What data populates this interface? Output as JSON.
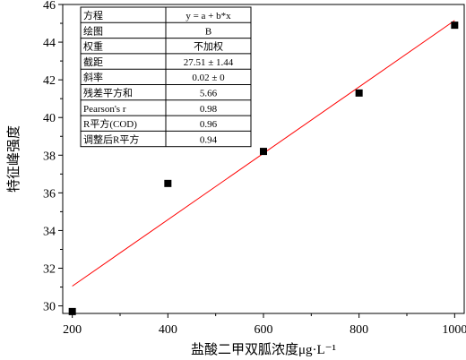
{
  "chart_data": {
    "type": "scatter",
    "xlabel": "盐酸二甲双胍浓度μg·L⁻¹",
    "ylabel": "特征峰强度",
    "xlim": [
      180,
      1020
    ],
    "ylim": [
      29.6,
      46
    ],
    "x_ticks": [
      200,
      400,
      600,
      800,
      1000
    ],
    "y_ticks": [
      30,
      32,
      34,
      36,
      38,
      40,
      42,
      44,
      46
    ],
    "grid": false,
    "series": [
      {
        "x": [
          200,
          400,
          600,
          800,
          1000
        ],
        "y": [
          29.7,
          36.5,
          38.2,
          41.3,
          44.9
        ],
        "marker": "square",
        "color": "#000000"
      }
    ],
    "fit_line": {
      "x": [
        200,
        1000
      ],
      "y": [
        31.05,
        45.15
      ],
      "color": "#ff0000"
    },
    "stats_table": [
      [
        "方程",
        "y = a + b*x"
      ],
      [
        "绘图",
        "B"
      ],
      [
        "权重",
        "不加权"
      ],
      [
        "截距",
        "27.51 ± 1.44"
      ],
      [
        "斜率",
        "0.02 ± 0"
      ],
      [
        "残差平方和",
        "5.66"
      ],
      [
        "Pearson's r",
        "0.98"
      ],
      [
        "R平方(COD)",
        "0.96"
      ],
      [
        "调整后R平方",
        "0.94"
      ]
    ]
  }
}
